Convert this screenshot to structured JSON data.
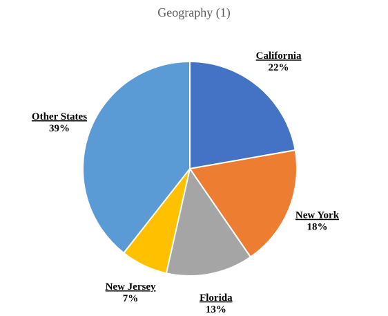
{
  "chart_data": {
    "type": "pie",
    "title": "Geography (1)",
    "categories": [
      "California",
      "New York",
      "Florida",
      "New Jersey",
      "Other States"
    ],
    "values": [
      22,
      18,
      13,
      7,
      39
    ],
    "value_labels": [
      "22%",
      "18%",
      "13%",
      "7%",
      "39%"
    ],
    "colors": [
      "#4472c4",
      "#ed7d31",
      "#a5a5a5",
      "#ffc000",
      "#5b9bd5"
    ]
  }
}
